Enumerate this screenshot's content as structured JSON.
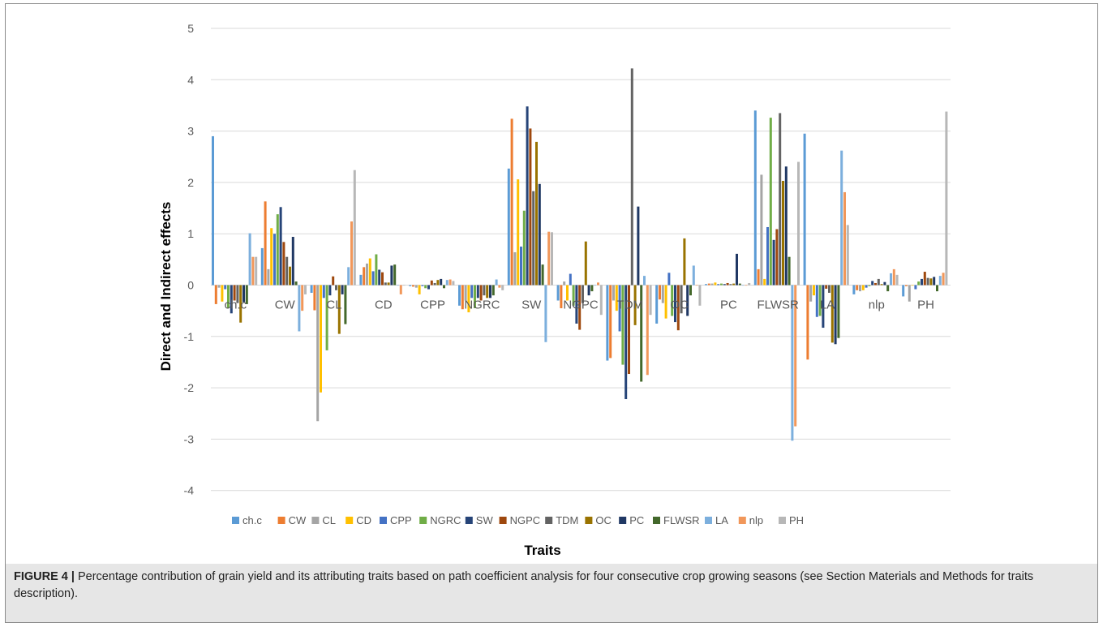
{
  "chart_data": {
    "type": "bar",
    "xlabel": "Traits",
    "ylabel": "Direct and Indirect effects",
    "ylim": [
      -4,
      5
    ],
    "yticks": [
      -4,
      -3,
      -2,
      -1,
      0,
      1,
      2,
      3,
      4,
      5
    ],
    "grid": true,
    "legend_position": "bottom",
    "categories": [
      "ch.c",
      "CW",
      "CL",
      "CD",
      "CPP",
      "NGRC",
      "SW",
      "NGPC",
      "TDM",
      "OC",
      "PC",
      "FLWSR",
      "LA",
      "nlp",
      "PH"
    ],
    "series": [
      {
        "name": "ch.c",
        "color": "#5B9BD5",
        "values": [
          2.9,
          0.72,
          -0.15,
          0.2,
          -0.02,
          -0.4,
          2.27,
          -0.3,
          -1.47,
          -0.75,
          0.02,
          3.4,
          2.95,
          -0.18,
          -0.22
        ]
      },
      {
        "name": "CW",
        "color": "#ED7D31",
        "values": [
          -0.37,
          1.63,
          -0.49,
          0.35,
          -0.03,
          -0.47,
          3.24,
          -0.45,
          -1.42,
          -0.28,
          0.03,
          0.31,
          -1.45,
          -0.1,
          -0.02
        ]
      },
      {
        "name": "CL",
        "color": "#A5A5A5",
        "values": [
          -0.05,
          0.31,
          -2.65,
          0.42,
          -0.05,
          -0.3,
          0.64,
          0.07,
          -0.3,
          -0.35,
          0.03,
          2.15,
          -0.32,
          -0.12,
          -0.32
        ]
      },
      {
        "name": "CD",
        "color": "#FFC000",
        "values": [
          -0.32,
          1.11,
          -2.09,
          0.52,
          -0.18,
          -0.53,
          2.06,
          -0.3,
          -0.5,
          -0.65,
          0.05,
          0.12,
          -0.2,
          -0.1,
          0.0
        ]
      },
      {
        "name": "CPP",
        "color": "#4472C4",
        "values": [
          -0.08,
          1.0,
          -0.25,
          0.27,
          -0.02,
          -0.25,
          0.75,
          0.22,
          -0.9,
          0.24,
          0.02,
          1.13,
          -0.62,
          -0.05,
          -0.08
        ]
      },
      {
        "name": "NGRC",
        "color": "#70AD47",
        "values": [
          -0.45,
          1.38,
          -1.27,
          0.6,
          -0.06,
          -0.45,
          1.45,
          -0.4,
          -1.55,
          -0.6,
          0.03,
          3.26,
          -0.6,
          -0.02,
          0.07
        ]
      },
      {
        "name": "SW",
        "color": "#264478",
        "values": [
          -0.55,
          1.52,
          -0.2,
          0.3,
          -0.08,
          -0.25,
          3.48,
          -0.75,
          -2.22,
          -0.72,
          0.02,
          0.88,
          -0.83,
          0.08,
          0.12
        ]
      },
      {
        "name": "NGPC",
        "color": "#9E480E",
        "values": [
          -0.3,
          0.84,
          0.17,
          0.25,
          0.09,
          -0.3,
          3.05,
          -0.87,
          -1.73,
          -0.88,
          0.04,
          1.09,
          -0.07,
          0.04,
          0.26
        ]
      },
      {
        "name": "TDM",
        "color": "#636363",
        "values": [
          -0.35,
          0.55,
          -0.1,
          0.05,
          0.04,
          -0.2,
          1.83,
          -0.35,
          4.22,
          -0.55,
          0.02,
          3.35,
          -0.15,
          0.12,
          0.14
        ]
      },
      {
        "name": "OC",
        "color": "#997300",
        "values": [
          -0.73,
          0.36,
          -0.95,
          0.05,
          0.1,
          -0.25,
          2.79,
          0.85,
          -0.78,
          0.91,
          0.03,
          2.03,
          -1.12,
          0.02,
          0.13
        ]
      },
      {
        "name": "PC",
        "color": "#203864",
        "values": [
          -0.33,
          0.94,
          -0.18,
          0.38,
          0.12,
          -0.25,
          1.97,
          -0.2,
          1.53,
          -0.6,
          0.61,
          2.31,
          -1.15,
          0.06,
          0.16
        ]
      },
      {
        "name": "FLWSR",
        "color": "#43682B",
        "values": [
          -0.37,
          0.07,
          -0.76,
          0.4,
          -0.06,
          -0.2,
          0.4,
          -0.12,
          -1.88,
          -0.2,
          0.03,
          0.55,
          -1.03,
          -0.12,
          -0.12
        ]
      },
      {
        "name": "LA",
        "color": "#7CAFDD",
        "values": [
          1.01,
          -0.9,
          0.35,
          0.0,
          0.1,
          0.11,
          -1.11,
          0.0,
          0.18,
          0.38,
          0.0,
          -3.03,
          2.62,
          0.23,
          0.18
        ]
      },
      {
        "name": "nlp",
        "color": "#F1975A",
        "values": [
          0.55,
          -0.5,
          1.24,
          -0.18,
          0.11,
          -0.05,
          1.04,
          0.05,
          -1.75,
          0.0,
          0.0,
          -2.75,
          1.81,
          0.31,
          0.24
        ]
      },
      {
        "name": "PH",
        "color": "#B7B7B7",
        "values": [
          0.55,
          -0.18,
          2.24,
          0.0,
          0.08,
          -0.1,
          1.03,
          -0.58,
          -0.58,
          -0.4,
          0.04,
          2.4,
          1.17,
          0.2,
          3.38
        ]
      }
    ]
  },
  "caption": {
    "label": "FIGURE 4 |",
    "text": " Percentage contribution of grain yield and its attributing traits based on path coefficient analysis for four consecutive crop growing seasons (see Section Materials and Methods for traits description)."
  }
}
